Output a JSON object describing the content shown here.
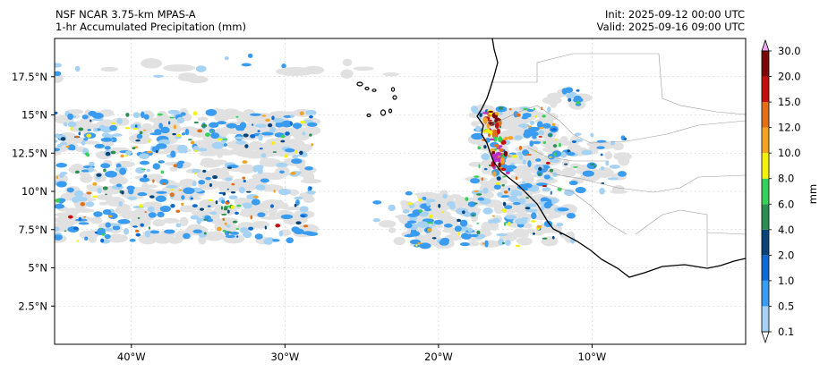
{
  "header": {
    "model_title": "NSF NCAR 3.75-km MPAS-A",
    "field_title": "1-hr Accumulated Precipitation (mm)",
    "init": "Init: 2025-09-12 00:00 UTC",
    "valid": "Valid: 2025-09-16 09:00 UTC"
  },
  "map": {
    "lon_range": [
      -45,
      0
    ],
    "lat_range": [
      0,
      20
    ],
    "lon_ticks": [
      {
        "value": -40,
        "label": "40°W"
      },
      {
        "value": -30,
        "label": "30°W"
      },
      {
        "value": -20,
        "label": "20°W"
      },
      {
        "value": -10,
        "label": "10°W"
      }
    ],
    "lat_ticks": [
      {
        "value": 2.5,
        "label": "2.5°N"
      },
      {
        "value": 5,
        "label": "5°N"
      },
      {
        "value": 7.5,
        "label": "7.5°N"
      },
      {
        "value": 10,
        "label": "10°N"
      },
      {
        "value": 12.5,
        "label": "12.5°N"
      },
      {
        "value": 15,
        "label": "15°N"
      },
      {
        "value": 17.5,
        "label": "17.5°N"
      }
    ],
    "gridlines": true
  },
  "colorbar": {
    "label": "mm",
    "levels": [
      "0.1",
      "0.5",
      "1.0",
      "2.0",
      "4.0",
      "6.0",
      "8.0",
      "10.0",
      "12.0",
      "15.0",
      "20.0",
      "30.0"
    ],
    "colors": [
      "#e1e1e1",
      "#a6d2f4",
      "#3a9cf0",
      "#0f6bd0",
      "#06447a",
      "#2a8f52",
      "#37d158",
      "#f2f20e",
      "#f2a426",
      "#e0711a",
      "#c01010",
      "#7a0808",
      "#bb2ec8",
      "#f2a6f0"
    ]
  }
}
